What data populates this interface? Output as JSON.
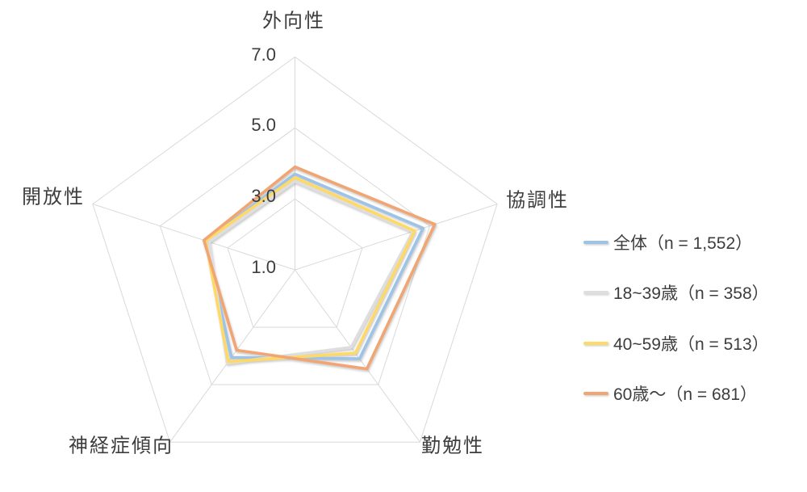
{
  "chart_data": {
    "type": "radar",
    "categories": [
      "外向性",
      "協調性",
      "勤勉性",
      "神経症傾向",
      "開放性"
    ],
    "series": [
      {
        "name": "全体（n = 1,552）",
        "color": "#9DC3E6",
        "values": [
          3.7,
          4.8,
          4.1,
          4.05,
          3.65
        ]
      },
      {
        "name": "18~39歳（n = 358）",
        "color": "#DEDEDE",
        "values": [
          3.5,
          4.5,
          3.7,
          4.25,
          3.55
        ]
      },
      {
        "name": "40~59歳（n = 513）",
        "color": "#FFD966",
        "values": [
          3.6,
          4.55,
          3.9,
          4.2,
          3.65
        ]
      },
      {
        "name": "60歳～（n = 681）",
        "color": "#F1A573",
        "values": [
          3.9,
          5.15,
          4.45,
          3.8,
          3.7
        ]
      }
    ],
    "axis": {
      "min": 1.0,
      "max": 7.0,
      "major_unit": 2.0,
      "tick_labels": [
        "7.0",
        "5.0",
        "3.0",
        "1.0"
      ],
      "tick_values": [
        7.0,
        5.0,
        3.0,
        1.0
      ]
    },
    "grid": true,
    "grid_color": "#D9D9D9",
    "legend_position": "right",
    "title": ""
  }
}
